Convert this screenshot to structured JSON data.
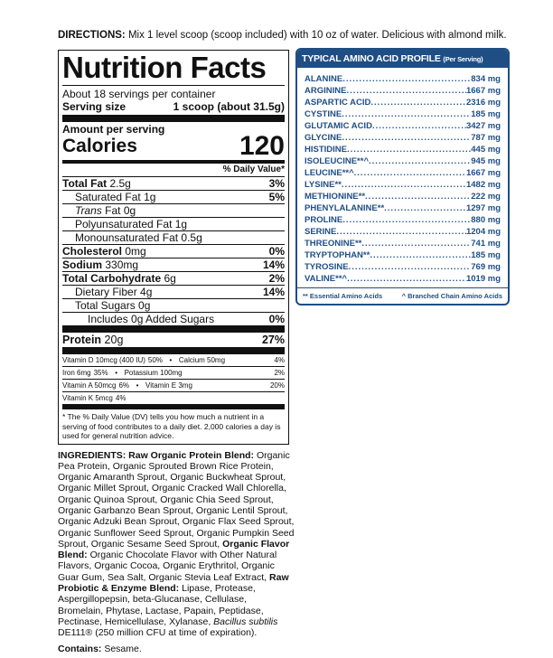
{
  "directions": {
    "label": "DIRECTIONS:",
    "text": " Mix 1 level scoop (scoop included) with 10 oz of water. Delicious with almond milk."
  },
  "facts": {
    "title": "Nutrition Facts",
    "servings": "About 18 servings per container",
    "serving_size_label": "Serving size",
    "serving_size": "1 scoop (about 31.5g)",
    "amount_per_serving": "Amount per serving",
    "calories_label": "Calories",
    "calories": "120",
    "dv_header": "% Daily Value*",
    "rows": [
      {
        "label": "Total Fat",
        "amount": "2.5g",
        "dv": "3%",
        "bold": true,
        "indent": 0
      },
      {
        "label": "Saturated Fat",
        "amount": "1g",
        "dv": "5%",
        "indent": 1
      },
      {
        "label": "Trans",
        "amount": "Fat 0g",
        "dv": "",
        "indent": 1,
        "italic": true
      },
      {
        "label": "Polyunsaturated Fat",
        "amount": "1g",
        "dv": "",
        "indent": 1
      },
      {
        "label": "Monounsaturated Fat",
        "amount": "0.5g",
        "dv": "",
        "indent": 1
      },
      {
        "label": "Cholesterol",
        "amount": "0mg",
        "dv": "0%",
        "bold": true,
        "indent": 0
      },
      {
        "label": "Sodium",
        "amount": "330mg",
        "dv": "14%",
        "bold": true,
        "indent": 0
      },
      {
        "label": "Total Carbohydrate",
        "amount": "6g",
        "dv": "2%",
        "bold": true,
        "indent": 0
      },
      {
        "label": "Dietary Fiber",
        "amount": "4g",
        "dv": "14%",
        "indent": 1
      },
      {
        "label": "Total Sugars",
        "amount": "0g",
        "dv": "",
        "indent": 1
      },
      {
        "label": "Includes 0g Added Sugars",
        "amount": "",
        "dv": "0%",
        "indent": 2
      }
    ],
    "protein": {
      "label": "Protein",
      "amount": "20g",
      "dv": "27%"
    },
    "vitamins": [
      [
        "Vitamin D 10mcg (400 IU)",
        "50%",
        "•",
        "Calcium 50mg",
        "4%"
      ],
      [
        "Iron 6mg",
        "35%",
        "•",
        "Potassium 100mg",
        "2%"
      ],
      [
        "Vitamin A 50mcg",
        "6%",
        "•",
        "Vitamin E 3mg",
        "20%"
      ],
      [
        "Vitamin K 5mcg",
        "4%",
        "",
        "",
        ""
      ]
    ],
    "footnote": "* The % Daily Value (DV) tells you how much a nutrient in a serving of food contributes to a daily diet. 2,000 calories a day is used for general nutrition advice."
  },
  "amino": {
    "title": "TYPICAL AMINO ACID PROFILE",
    "subtitle": "(Per Serving)",
    "color": "#1f4e85",
    "items": [
      {
        "name": "ALANINE",
        "value": "834 mg"
      },
      {
        "name": "ARGININE",
        "value": "1667 mg"
      },
      {
        "name": "ASPARTIC ACID",
        "value": "2316 mg"
      },
      {
        "name": "CYSTINE",
        "value": "185 mg"
      },
      {
        "name": "GLUTAMIC ACID",
        "value": "3427 mg"
      },
      {
        "name": "GLYCINE",
        "value": "787 mg"
      },
      {
        "name": "HISTIDINE",
        "value": "445 mg"
      },
      {
        "name": "ISOLEUCINE**^",
        "value": "945 mg"
      },
      {
        "name": "LEUCINE**^",
        "value": "1667 mg"
      },
      {
        "name": "LYSINE**",
        "value": "1482 mg"
      },
      {
        "name": "METHIONINE**",
        "value": "222 mg"
      },
      {
        "name": "PHENYLALANINE**",
        "value": "1297 mg"
      },
      {
        "name": "PROLINE",
        "value": "880 mg"
      },
      {
        "name": "SERINE",
        "value": "1204 mg"
      },
      {
        "name": "THREONINE**",
        "value": "741 mg"
      },
      {
        "name": "TRYPTOPHAN**",
        "value": "185 mg"
      },
      {
        "name": "TYROSINE",
        "value": "769 mg"
      },
      {
        "name": "VALINE**^",
        "value": "1019 mg"
      }
    ],
    "note1": "** Essential Amino Acids",
    "note2": "^ Branched Chain Amino Acids"
  },
  "ingredients": {
    "label": "INGREDIENTS: Raw Organic Protein Blend:",
    "p1": " Organic Pea Protein, Organic Sprouted Brown Rice Protein, Organic Amaranth Sprout, Organic Buckwheat Sprout, Organic Millet Sprout, Organic Cracked Wall Chlorella, Organic Quinoa Sprout, Organic Chia Seed Sprout, Organic Garbanzo Bean Sprout, Organic Lentil Sprout, Organic Adzuki Bean Sprout, Organic Flax Seed Sprout, Organic Sunflower Seed Sprout, Organic Pumpkin Seed Sprout, Organic Sesame Seed Sprout, ",
    "flavor_label": "Organic Flavor Blend:",
    "p2": " Organic Chocolate Flavor with Other Natural Flavors, Organic Cocoa, Organic Erythritol, Organic Guar Gum, Sea Salt, Organic Stevia Leaf Extract, ",
    "enzyme_label": "Raw Probiotic & Enzyme Blend:",
    "p3": " Lipase, Protease, Aspergillopepsin, beta-Glucanase, Cellulase, Bromelain, Phytase, Lactase, Papain, Peptidase, Pectinase, Hemicellulase, Xylanase, ",
    "probiotic": "Bacillus subtilis",
    "p4": " DE111® (250 million CFU at time of expiration).",
    "contains_label": "Contains:",
    "contains": " Sesame."
  }
}
